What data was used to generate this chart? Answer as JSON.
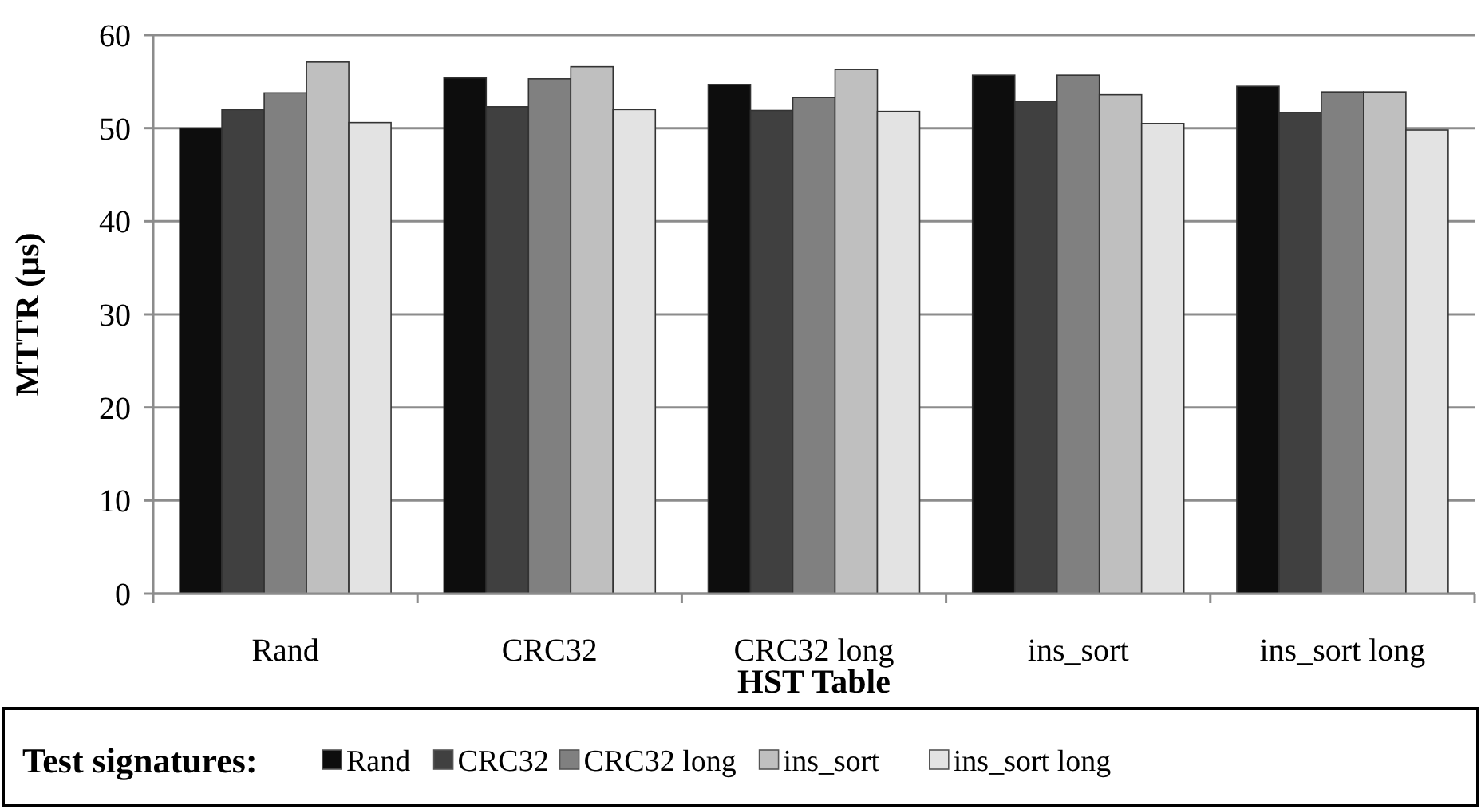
{
  "chart_data": {
    "type": "bar",
    "xlabel": "HST Table",
    "ylabel": "MTTR (µs)",
    "legend_title": "Test signatures:",
    "categories": [
      "Rand",
      "CRC32",
      "CRC32 long",
      "ins_sort",
      "ins_sort long"
    ],
    "series": [
      {
        "name": "Rand",
        "color": "#0d0d0d",
        "values": [
          50.0,
          55.4,
          54.7,
          55.7,
          54.5
        ]
      },
      {
        "name": "CRC32",
        "color": "#404040",
        "values": [
          52.0,
          52.3,
          51.9,
          52.9,
          51.7
        ]
      },
      {
        "name": "CRC32 long",
        "color": "#808080",
        "values": [
          53.8,
          55.3,
          53.3,
          55.7,
          53.9
        ]
      },
      {
        "name": "ins_sort",
        "color": "#bfbfbf",
        "values": [
          57.1,
          56.6,
          56.3,
          53.6,
          53.9
        ]
      },
      {
        "name": "ins_sort long",
        "color": "#e3e3e3",
        "values": [
          50.6,
          52.0,
          51.8,
          50.5,
          49.8
        ]
      }
    ],
    "ylim": [
      0,
      60
    ],
    "yticks": [
      0,
      10,
      20,
      30,
      40,
      50,
      60
    ],
    "grid": "y",
    "legend": "bottom"
  }
}
